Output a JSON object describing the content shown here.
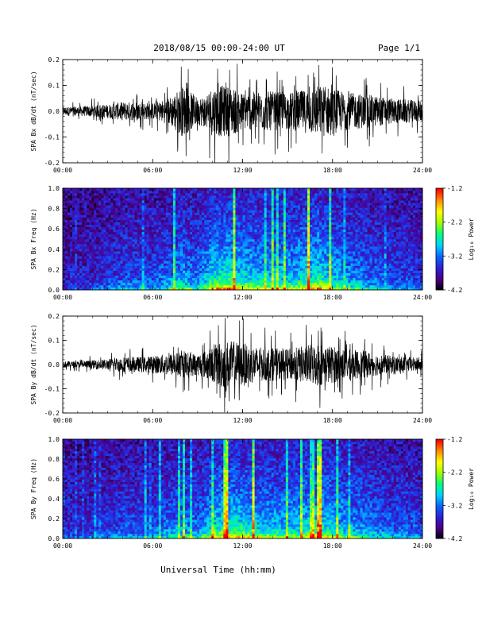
{
  "header": {
    "title": "2018/08/15  00:00-24:00 UT",
    "page": "Page 1/1"
  },
  "xlabel": "Universal Time (hh:mm)",
  "colors": {
    "trace": "#000000",
    "colormap": [
      "#000000",
      "#4b0082",
      "#2d1fd6",
      "#0a64ff",
      "#00d2ff",
      "#00ff7f",
      "#a0ff00",
      "#ffff00",
      "#ff8c00",
      "#ff0000"
    ]
  },
  "chart_data": [
    {
      "type": "line",
      "ylabel": "SPA Bx dB/dt (nT/sec)",
      "x_range": [
        0,
        24
      ],
      "x_ticks": [
        "00:00",
        "06:00",
        "12:00",
        "18:00",
        "24:00"
      ],
      "ylim": [
        -0.2,
        0.2
      ],
      "y_ticks": [
        "-0.2",
        "-0.1",
        "0.0",
        "0.1",
        "0.2"
      ],
      "envelope": {
        "hours": [
          0,
          1,
          2,
          3,
          4,
          5,
          6,
          7,
          7.5,
          8,
          9,
          9.5,
          10,
          10.5,
          11,
          11.5,
          12,
          13,
          14,
          15,
          16,
          17,
          17.5,
          18,
          19,
          20,
          21,
          22,
          23,
          24
        ],
        "amplitude": [
          0.04,
          0.04,
          0.05,
          0.06,
          0.08,
          0.08,
          0.07,
          0.11,
          0.16,
          0.22,
          0.12,
          0.14,
          0.22,
          0.22,
          0.22,
          0.2,
          0.16,
          0.17,
          0.17,
          0.16,
          0.18,
          0.22,
          0.22,
          0.2,
          0.16,
          0.15,
          0.13,
          0.11,
          0.1,
          0.09
        ]
      }
    },
    {
      "type": "heatmap",
      "ylabel": "SPA Bx Freq (Hz)",
      "x_range": [
        0,
        24
      ],
      "x_ticks": [
        "00:00",
        "06:00",
        "12:00",
        "18:00",
        "24:00"
      ],
      "ylim": [
        0,
        1.0
      ],
      "y_ticks": [
        "0.0",
        "0.2",
        "0.4",
        "0.6",
        "0.8",
        "1.0"
      ],
      "colorbar": {
        "label": "Log₁₀ Power",
        "range": [
          -4.2,
          -1.2
        ],
        "ticks": [
          "-1.2",
          "-2.2",
          "-3.2",
          "-4.2"
        ]
      },
      "activity": {
        "hours": [
          0,
          2,
          4,
          6,
          7,
          8,
          9,
          10,
          11,
          12,
          13,
          14,
          15,
          16,
          17,
          18,
          19,
          20,
          21,
          22,
          24
        ],
        "level": [
          0.15,
          0.2,
          0.35,
          0.35,
          0.45,
          0.6,
          0.45,
          0.8,
          0.9,
          0.75,
          0.7,
          0.65,
          0.65,
          0.75,
          0.85,
          0.7,
          0.55,
          0.5,
          0.4,
          0.35,
          0.3
        ]
      }
    },
    {
      "type": "line",
      "ylabel": "SPA By dB/dt (nT/sec)",
      "x_range": [
        0,
        24
      ],
      "x_ticks": [
        "00:00",
        "06:00",
        "12:00",
        "18:00",
        "24:00"
      ],
      "ylim": [
        -0.2,
        0.2
      ],
      "y_ticks": [
        "-0.2",
        "-0.1",
        "0.0",
        "0.1",
        "0.2"
      ],
      "envelope": {
        "hours": [
          0,
          1,
          2,
          3,
          4,
          5,
          6,
          7,
          8,
          9,
          10,
          10.5,
          11,
          12,
          13,
          14,
          15,
          16,
          17,
          18,
          19,
          20,
          21,
          22,
          23,
          24
        ],
        "amplitude": [
          0.03,
          0.03,
          0.04,
          0.05,
          0.07,
          0.07,
          0.08,
          0.1,
          0.12,
          0.1,
          0.16,
          0.22,
          0.22,
          0.2,
          0.16,
          0.15,
          0.14,
          0.17,
          0.2,
          0.17,
          0.14,
          0.13,
          0.1,
          0.08,
          0.07,
          0.06
        ]
      }
    },
    {
      "type": "heatmap",
      "ylabel": "SPA By Freq (Hz)",
      "x_range": [
        0,
        24
      ],
      "x_ticks": [
        "00:00",
        "06:00",
        "12:00",
        "18:00",
        "24:00"
      ],
      "ylim": [
        0,
        1.0
      ],
      "y_ticks": [
        "0.0",
        "0.2",
        "0.4",
        "0.6",
        "0.8",
        "1.0"
      ],
      "colorbar": {
        "label": "Log₁₀ Power",
        "range": [
          -4.2,
          -1.2
        ],
        "ticks": [
          "-1.2",
          "-2.2",
          "-3.2",
          "-4.2"
        ]
      },
      "activity": {
        "hours": [
          0,
          2,
          4,
          6,
          7,
          8,
          9,
          10,
          11,
          12,
          13,
          14,
          15,
          16,
          17,
          18,
          19,
          20,
          21,
          22,
          24
        ],
        "level": [
          0.2,
          0.25,
          0.35,
          0.35,
          0.45,
          0.55,
          0.45,
          0.75,
          0.85,
          0.8,
          0.7,
          0.65,
          0.65,
          0.7,
          0.8,
          0.7,
          0.6,
          0.55,
          0.45,
          0.4,
          0.35
        ]
      }
    }
  ]
}
